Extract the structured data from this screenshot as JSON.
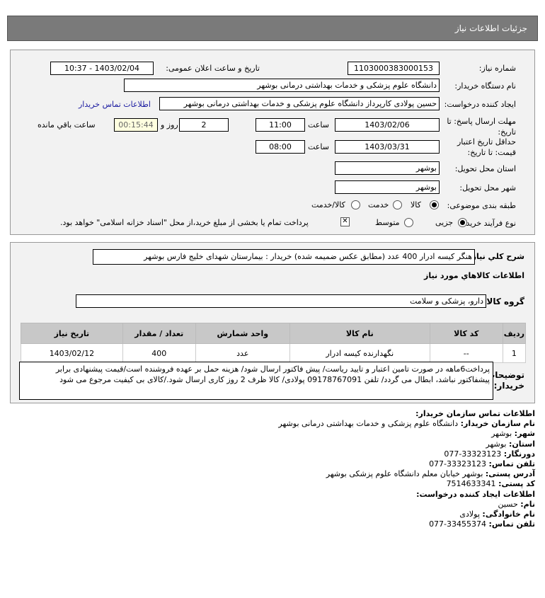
{
  "header": {
    "title": "جزئیات اطلاعات نیاز"
  },
  "form": {
    "need_number_label": "شماره نیاز:",
    "need_number": "1103000383000153",
    "announce_label": "تاریخ و ساعت اعلان عمومی:",
    "announce_value": "1403/02/04 - 10:37",
    "buyer_org_label": "نام دستگاه خریدار:",
    "buyer_org": "دانشگاه علوم پزشکی و خدمات بهداشتی درمانی بوشهر",
    "creator_label": "ایجاد کننده درخواست:",
    "creator": "حسین پولادی کارپرداز دانشگاه علوم پزشکی و خدمات بهداشتی درمانی بوشهر",
    "contact_link": "اطلاعات تماس خریدار",
    "deadline_label": "مهلت ارسال پاسخ: تا تاریخ:",
    "deadline_date": "1403/02/06",
    "time_label": "ساعت",
    "deadline_time": "11:00",
    "days": "2",
    "days_label": "روز و",
    "remaining": "00:15:44",
    "remaining_label": "ساعت باقي مانده",
    "validity_label": "حداقل تاریخ اعتبار قیمت: تا تاریخ:",
    "validity_date": "1403/03/31",
    "validity_time": "08:00",
    "province_label": "استان محل تحویل:",
    "province": "بوشهر",
    "city_label": "شهر محل تحویل:",
    "city": "بوشهر",
    "category_label": "طبقه بندی موضوعی:",
    "category_options": [
      "کالا",
      "خدمت",
      "کالا/خدمت"
    ],
    "category_selected": "کالا",
    "process_label": "نوع فرآیند خرید :",
    "process_options": [
      "جزیی",
      "متوسط"
    ],
    "process_selected": "جزیی",
    "payment_note": "پرداخت تمام یا بخشی از مبلغ خرید،از محل \"اسناد خزانه اسلامی\" خواهد بود."
  },
  "needs": {
    "summary_label": "شرح کلي نیاز:",
    "summary": "هنگر کیسه ادرار 400 عدد (مطابق عکس ضمیمه شده) خریدار : بیمارستان شهدای خلیج فارس بوشهر",
    "goods_title": "اطلاعات کالاهاي مورد نیاز",
    "group_label": "گروه کالا:",
    "group": "دارو، پزشکی و سلامت",
    "columns": [
      "ردیف",
      "کد کالا",
      "نام کالا",
      "واحد شمارش",
      "تعداد / مقدار",
      "تاریخ نیاز"
    ],
    "rows": [
      [
        "1",
        "--",
        "نگهدارنده کیسه ادرار",
        "عدد",
        "400",
        "1403/02/12"
      ]
    ],
    "notes_label": "توضیحات خریدار:",
    "notes": "پرداخت6ماهه در صورت تامین اعتبار و تایید ریاست/ پیش فاکتور ارسال شود/ هزینه حمل بر عهده فروشنده است/قیمت پیشنهادی برابر پیشفاکتور نباشد، ابطال می گردد/ تلفن 09178767091 پولادی/ کالا ظرف 2 روز کاری ارسال شود./کالای بی کیفیت مرجوع می شود"
  },
  "contact": {
    "title": "اطلاعات تماس سازمان خریدار:",
    "items": [
      {
        "label": "نام سازمان خریدار:",
        "value": "دانشگاه علوم پزشکی و خدمات بهداشتی درمانی بوشهر"
      },
      {
        "label": "شهر:",
        "value": "بوشهر"
      },
      {
        "label": "استان:",
        "value": "بوشهر"
      },
      {
        "label": "دورنگار:",
        "value": "077-33323123"
      },
      {
        "label": "تلفن تماس:",
        "value": "077-33323123"
      },
      {
        "label": "آدرس پستی:",
        "value": "بوشهر خیابان معلم دانشگاه علوم پزشکی بوشهر"
      },
      {
        "label": "کد پستی:",
        "value": "7514633341"
      }
    ],
    "creator_title": "اطلاعات ایجاد کننده درخواست:",
    "creator_items": [
      {
        "label": "نام:",
        "value": "حسین"
      },
      {
        "label": "نام خانوادگی:",
        "value": "پولادی"
      },
      {
        "label": "تلفن تماس:",
        "value": "077-33455374"
      }
    ]
  }
}
